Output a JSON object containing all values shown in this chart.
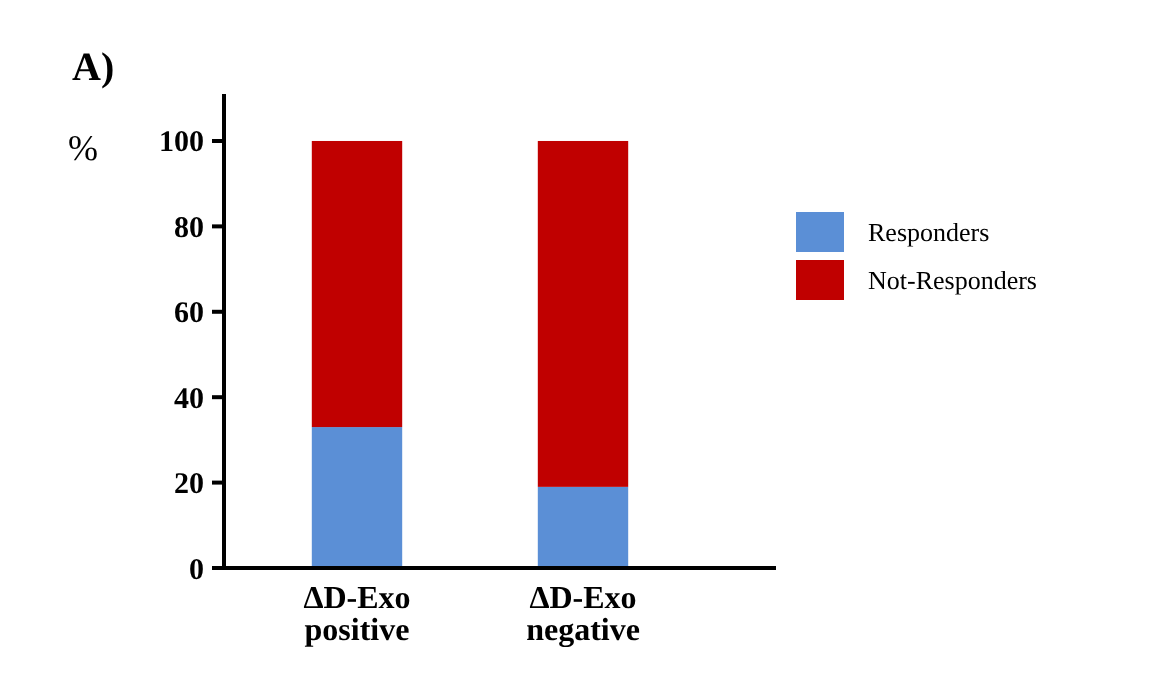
{
  "chart_data": {
    "type": "bar",
    "title": "A)",
    "ylabel": "%",
    "categories": [
      "ΔD-Exo positive",
      "ΔD-Exo negative"
    ],
    "stacked": true,
    "series": [
      {
        "name": "Responders",
        "color": "#5b8fd6",
        "values": [
          33,
          19
        ]
      },
      {
        "name": "Not-Responders",
        "color": "#c00000",
        "values": [
          67,
          81
        ]
      }
    ],
    "ylim": [
      0,
      111
    ],
    "yticks": [
      0,
      20,
      40,
      60,
      80,
      100
    ],
    "grid": false,
    "legend": "right"
  }
}
